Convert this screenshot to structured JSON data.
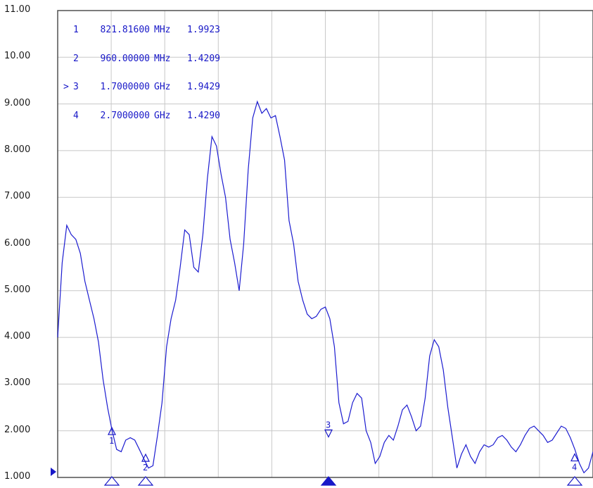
{
  "y_axis_labels": [
    "11.00",
    "10.00",
    "9.000",
    "8.000",
    "7.000",
    "6.000",
    "5.000",
    "4.000",
    "3.000",
    "2.000",
    "1.000"
  ],
  "markers": [
    {
      "selected": "",
      "number": "1",
      "freq": "821.81600",
      "unit": "MHz",
      "value": "1.9923"
    },
    {
      "selected": "",
      "number": "2",
      "freq": "960.00000",
      "unit": "MHz",
      "value": "1.4209"
    },
    {
      "selected": ">",
      "number": "3",
      "freq": "1.7000000",
      "unit": "GHz",
      "value": "1.9429"
    },
    {
      "selected": "",
      "number": "4",
      "freq": "2.7000000",
      "unit": "GHz",
      "value": "1.4290"
    }
  ],
  "marker_labels": [
    "1",
    "2",
    "3",
    "4"
  ],
  "colors": {
    "trace": "#1c1cd0",
    "grid": "#c8c8c8",
    "frame": "#505050",
    "marker": "#1818c8"
  },
  "chart_data": {
    "type": "line",
    "ylim": [
      1,
      11
    ],
    "ylabel": "",
    "xlabel": "",
    "grid": true,
    "series": [
      {
        "values": [
          4.0,
          5.6,
          6.4,
          6.2,
          6.1,
          5.8,
          5.2,
          4.8,
          4.4,
          3.9,
          3.1,
          2.5,
          2.0,
          1.6,
          1.55,
          1.8,
          1.85,
          1.8,
          1.6,
          1.4,
          1.2,
          1.25,
          1.9,
          2.6,
          3.8,
          4.4,
          4.8,
          5.5,
          6.3,
          6.2,
          5.5,
          5.4,
          6.2,
          7.4,
          8.3,
          8.1,
          7.5,
          7.0,
          6.1,
          5.6,
          5.0,
          6.0,
          7.6,
          8.7,
          9.05,
          8.8,
          8.9,
          8.7,
          8.75,
          8.3,
          7.8,
          6.5,
          6.0,
          5.2,
          4.8,
          4.5,
          4.4,
          4.45,
          4.6,
          4.65,
          4.4,
          3.8,
          2.6,
          2.15,
          2.2,
          2.6,
          2.8,
          2.7,
          2.0,
          1.75,
          1.3,
          1.45,
          1.75,
          1.9,
          1.8,
          2.1,
          2.45,
          2.55,
          2.3,
          2.0,
          2.1,
          2.7,
          3.6,
          3.95,
          3.8,
          3.3,
          2.5,
          1.85,
          1.2,
          1.5,
          1.7,
          1.45,
          1.3,
          1.55,
          1.7,
          1.65,
          1.7,
          1.85,
          1.9,
          1.8,
          1.65,
          1.55,
          1.7,
          1.9,
          2.05,
          2.1,
          2.0,
          1.9,
          1.75,
          1.8,
          1.95,
          2.1,
          2.05,
          1.85,
          1.6,
          1.3,
          1.1,
          1.2,
          1.55
        ]
      }
    ]
  }
}
